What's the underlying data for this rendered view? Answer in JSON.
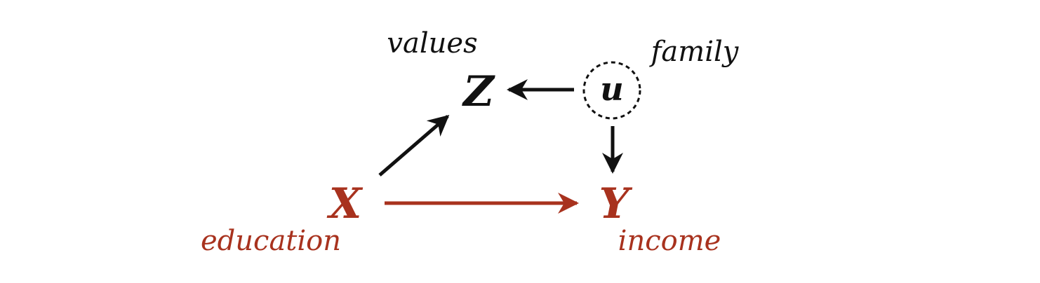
{
  "colors": {
    "causal": "#a8321e",
    "neutral": "#111111"
  },
  "nodes": {
    "x": {
      "symbol": "X",
      "label": "education"
    },
    "y": {
      "symbol": "Y",
      "label": "income"
    },
    "z": {
      "symbol": "Z",
      "label": "values"
    },
    "u": {
      "symbol": "u",
      "label": "family"
    }
  },
  "edges": [
    {
      "from": "X",
      "to": "Z",
      "style": "neutral"
    },
    {
      "from": "u",
      "to": "Z",
      "style": "neutral"
    },
    {
      "from": "u",
      "to": "Y",
      "style": "neutral"
    },
    {
      "from": "X",
      "to": "Y",
      "style": "causal"
    }
  ],
  "unobserved": [
    "u"
  ]
}
